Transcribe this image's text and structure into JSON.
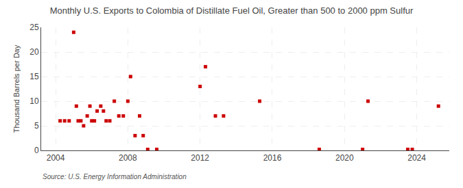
{
  "chart_data": {
    "type": "scatter",
    "title": "Monthly U.S. Exports to Colombia of Distillate Fuel Oil, Greater than 500 to 2000 ppm Sulfur",
    "ylabel": "Thousand Barrels per Day",
    "annotations": [
      "Source: U.S. Energy Information Administration"
    ],
    "color": "#cc0000",
    "marker": "square",
    "grid": true,
    "xlim": [
      2003.2,
      2025.8
    ],
    "ylim": [
      0,
      25
    ],
    "xticks": [
      2004,
      2008,
      2012,
      2016,
      2020,
      2024
    ],
    "yticks": [
      0,
      5,
      10,
      15,
      20,
      25
    ],
    "x": [
      2004.25,
      2004.5,
      2004.75,
      2005.0,
      2005.15,
      2005.25,
      2005.4,
      2005.55,
      2005.75,
      2005.9,
      2006.0,
      2006.15,
      2006.3,
      2006.5,
      2006.65,
      2006.8,
      2007.0,
      2007.25,
      2007.5,
      2007.75,
      2008.0,
      2008.15,
      2008.4,
      2008.65,
      2008.85,
      2009.1,
      2009.6,
      2012.0,
      2012.3,
      2012.85,
      2013.3,
      2015.3,
      2018.6,
      2021.0,
      2021.3,
      2023.5,
      2023.75,
      2025.2
    ],
    "values": [
      6,
      6,
      6,
      24,
      9,
      6,
      6,
      5,
      7,
      9,
      6,
      6,
      8,
      9,
      8,
      6,
      6,
      10,
      7,
      7,
      10,
      15,
      3,
      7,
      3,
      0.2,
      0.2,
      13,
      17,
      7,
      7,
      10,
      0.2,
      0.2,
      10,
      0.2,
      0.2,
      9
    ]
  }
}
